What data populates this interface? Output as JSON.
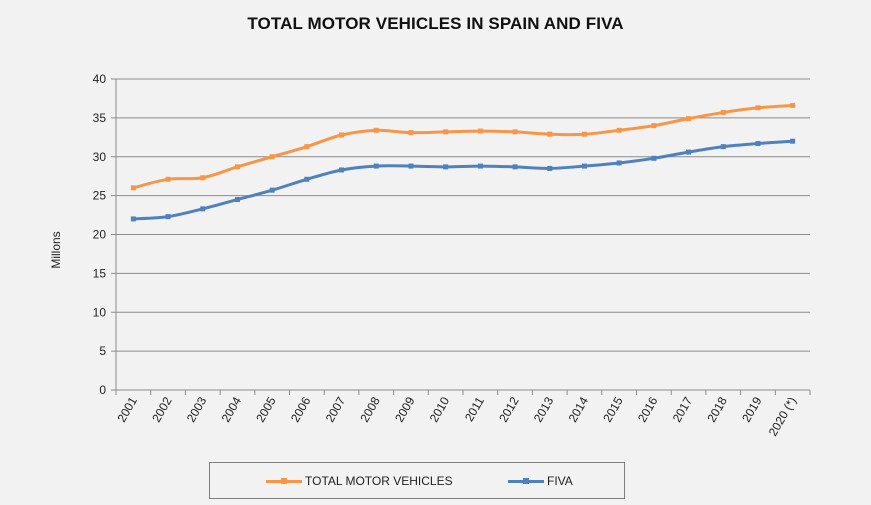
{
  "chart_data": {
    "type": "line",
    "title": "TOTAL MOTOR VEHICLES IN SPAIN AND FIVA",
    "xlabel": "",
    "ylabel": "Millons",
    "categories": [
      "2001",
      "2002",
      "2003",
      "2004",
      "2005",
      "2006",
      "2007",
      "2008",
      "2009",
      "2010",
      "2011",
      "2012",
      "2013",
      "2014",
      "2015",
      "2016",
      "2017",
      "2018",
      "2019",
      "2020 (*)"
    ],
    "ylim": [
      0,
      40
    ],
    "yticks": [
      0,
      5,
      10,
      15,
      20,
      25,
      30,
      35,
      40
    ],
    "grid": true,
    "legend_position": "bottom",
    "series": [
      {
        "name": "TOTAL MOTOR VEHICLES",
        "color": "#f79646",
        "values": [
          26.0,
          27.1,
          27.3,
          28.7,
          30.0,
          31.3,
          32.8,
          33.4,
          33.1,
          33.2,
          33.3,
          33.2,
          32.9,
          32.9,
          33.4,
          34.0,
          34.9,
          35.7,
          36.3,
          36.6
        ]
      },
      {
        "name": "FIVA",
        "color": "#4f81bd",
        "values": [
          22.0,
          22.3,
          23.3,
          24.5,
          25.7,
          27.1,
          28.3,
          28.8,
          28.8,
          28.7,
          28.8,
          28.7,
          28.5,
          28.8,
          29.2,
          29.8,
          30.6,
          31.3,
          31.7,
          32.0
        ]
      }
    ]
  }
}
